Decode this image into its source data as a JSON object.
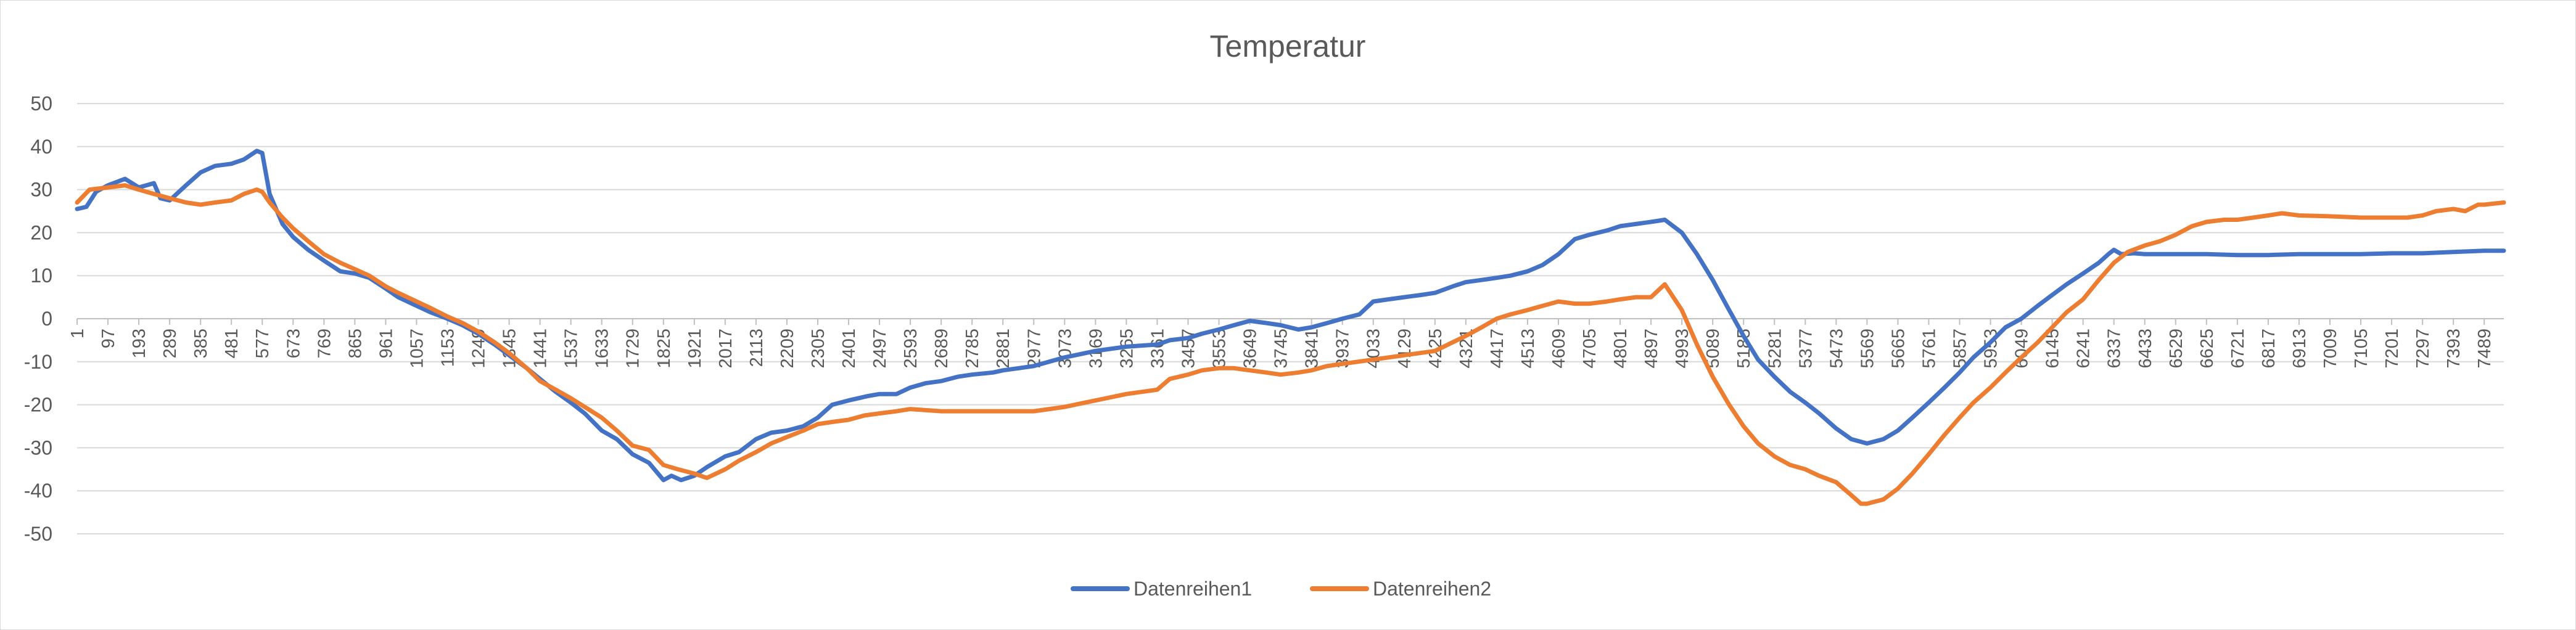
{
  "chart_data": {
    "type": "line",
    "title": "Temperatur",
    "xlabel": "",
    "ylabel": "",
    "ylim": [
      -50,
      50
    ],
    "yticks": [
      50,
      40,
      30,
      20,
      10,
      0,
      -10,
      -20,
      -30,
      -40,
      -50
    ],
    "xlim": [
      1,
      7550
    ],
    "xticks": [
      1,
      97,
      193,
      289,
      385,
      481,
      577,
      673,
      769,
      865,
      961,
      1057,
      1153,
      1249,
      1345,
      1441,
      1537,
      1633,
      1729,
      1825,
      1921,
      2017,
      2113,
      2209,
      2305,
      2401,
      2497,
      2593,
      2689,
      2785,
      2881,
      2977,
      3073,
      3169,
      3265,
      3361,
      3457,
      3553,
      3649,
      3745,
      3841,
      3937,
      4033,
      4129,
      4225,
      4321,
      4417,
      4513,
      4609,
      4705,
      4801,
      4897,
      4993,
      5089,
      5185,
      5281,
      5377,
      5473,
      5569,
      5665,
      5761,
      5857,
      5953,
      6049,
      6145,
      6241,
      6337,
      6433,
      6529,
      6625,
      6721,
      6817,
      6913,
      7009,
      7105,
      7201,
      7297,
      7393,
      7489
    ],
    "grid": true,
    "legend": "bottom",
    "series": [
      {
        "name": "Datenreihen1",
        "color": "#4472c4",
        "points": [
          [
            1,
            25.5
          ],
          [
            30,
            26
          ],
          [
            60,
            29.5
          ],
          [
            97,
            31
          ],
          [
            150,
            32.5
          ],
          [
            193,
            30.5
          ],
          [
            240,
            31.5
          ],
          [
            260,
            28
          ],
          [
            289,
            27.5
          ],
          [
            340,
            31
          ],
          [
            385,
            34
          ],
          [
            430,
            35.5
          ],
          [
            481,
            36
          ],
          [
            520,
            37
          ],
          [
            560,
            39
          ],
          [
            577,
            38.5
          ],
          [
            600,
            29
          ],
          [
            640,
            22
          ],
          [
            673,
            19
          ],
          [
            720,
            16
          ],
          [
            769,
            13.5
          ],
          [
            820,
            11
          ],
          [
            865,
            10.5
          ],
          [
            910,
            9.5
          ],
          [
            961,
            7
          ],
          [
            1000,
            5
          ],
          [
            1057,
            3
          ],
          [
            1100,
            1.5
          ],
          [
            1153,
            0
          ],
          [
            1200,
            -1.5
          ],
          [
            1249,
            -3.5
          ],
          [
            1300,
            -6
          ],
          [
            1345,
            -8.5
          ],
          [
            1400,
            -11.5
          ],
          [
            1441,
            -14
          ],
          [
            1490,
            -17
          ],
          [
            1537,
            -19.5
          ],
          [
            1580,
            -22
          ],
          [
            1633,
            -26
          ],
          [
            1680,
            -28
          ],
          [
            1729,
            -31.5
          ],
          [
            1780,
            -33.5
          ],
          [
            1825,
            -37.5
          ],
          [
            1850,
            -36.5
          ],
          [
            1880,
            -37.5
          ],
          [
            1921,
            -36.5
          ],
          [
            1960,
            -34.5
          ],
          [
            2017,
            -32
          ],
          [
            2060,
            -31
          ],
          [
            2113,
            -28
          ],
          [
            2160,
            -26.5
          ],
          [
            2209,
            -26
          ],
          [
            2260,
            -25
          ],
          [
            2305,
            -23
          ],
          [
            2350,
            -20
          ],
          [
            2401,
            -19
          ],
          [
            2460,
            -18
          ],
          [
            2497,
            -17.5
          ],
          [
            2550,
            -17.5
          ],
          [
            2593,
            -16
          ],
          [
            2640,
            -15
          ],
          [
            2689,
            -14.5
          ],
          [
            2740,
            -13.5
          ],
          [
            2785,
            -13
          ],
          [
            2850,
            -12.5
          ],
          [
            2881,
            -12
          ],
          [
            2930,
            -11.5
          ],
          [
            2977,
            -11
          ],
          [
            3073,
            -9
          ],
          [
            3169,
            -7.5
          ],
          [
            3265,
            -6.5
          ],
          [
            3361,
            -6
          ],
          [
            3400,
            -5
          ],
          [
            3457,
            -4.5
          ],
          [
            3500,
            -3.5
          ],
          [
            3553,
            -2.5
          ],
          [
            3600,
            -1.5
          ],
          [
            3649,
            -0.5
          ],
          [
            3700,
            -1
          ],
          [
            3745,
            -1.5
          ],
          [
            3800,
            -2.5
          ],
          [
            3841,
            -2
          ],
          [
            3890,
            -1
          ],
          [
            3937,
            0
          ],
          [
            3990,
            1
          ],
          [
            4033,
            4
          ],
          [
            4080,
            4.5
          ],
          [
            4129,
            5
          ],
          [
            4180,
            5.5
          ],
          [
            4225,
            6
          ],
          [
            4280,
            7.5
          ],
          [
            4321,
            8.5
          ],
          [
            4370,
            9
          ],
          [
            4417,
            9.5
          ],
          [
            4460,
            10
          ],
          [
            4513,
            11
          ],
          [
            4560,
            12.5
          ],
          [
            4609,
            15
          ],
          [
            4660,
            18.5
          ],
          [
            4705,
            19.5
          ],
          [
            4760,
            20.5
          ],
          [
            4801,
            21.5
          ],
          [
            4850,
            22
          ],
          [
            4897,
            22.5
          ],
          [
            4940,
            23
          ],
          [
            4993,
            20
          ],
          [
            5040,
            15
          ],
          [
            5089,
            9
          ],
          [
            5140,
            2
          ],
          [
            5185,
            -4
          ],
          [
            5230,
            -9.5
          ],
          [
            5281,
            -13.5
          ],
          [
            5330,
            -17
          ],
          [
            5377,
            -19.5
          ],
          [
            5420,
            -22
          ],
          [
            5473,
            -25.5
          ],
          [
            5520,
            -28
          ],
          [
            5569,
            -29
          ],
          [
            5620,
            -28
          ],
          [
            5665,
            -26
          ],
          [
            5710,
            -23
          ],
          [
            5761,
            -19.5
          ],
          [
            5810,
            -16
          ],
          [
            5857,
            -12.5
          ],
          [
            5900,
            -9
          ],
          [
            5953,
            -5.5
          ],
          [
            6000,
            -2
          ],
          [
            6049,
            0
          ],
          [
            6100,
            3
          ],
          [
            6145,
            5.5
          ],
          [
            6190,
            8
          ],
          [
            6241,
            10.5
          ],
          [
            6290,
            13
          ],
          [
            6320,
            15
          ],
          [
            6337,
            16
          ],
          [
            6360,
            15
          ],
          [
            6400,
            15.2
          ],
          [
            6433,
            15
          ],
          [
            6529,
            15
          ],
          [
            6625,
            15
          ],
          [
            6721,
            14.8
          ],
          [
            6817,
            14.8
          ],
          [
            6913,
            15
          ],
          [
            7009,
            15
          ],
          [
            7105,
            15
          ],
          [
            7201,
            15.2
          ],
          [
            7297,
            15.2
          ],
          [
            7393,
            15.5
          ],
          [
            7489,
            15.8
          ],
          [
            7550,
            15.8
          ]
        ]
      },
      {
        "name": "Datenreihen2",
        "color": "#ed7d31",
        "points": [
          [
            1,
            27
          ],
          [
            40,
            30
          ],
          [
            97,
            30.5
          ],
          [
            150,
            31
          ],
          [
            193,
            30
          ],
          [
            240,
            29
          ],
          [
            289,
            28
          ],
          [
            340,
            27
          ],
          [
            385,
            26.5
          ],
          [
            430,
            27
          ],
          [
            481,
            27.5
          ],
          [
            520,
            29
          ],
          [
            560,
            30
          ],
          [
            577,
            29.5
          ],
          [
            600,
            27
          ],
          [
            640,
            23.5
          ],
          [
            673,
            21
          ],
          [
            720,
            18
          ],
          [
            769,
            15
          ],
          [
            820,
            13
          ],
          [
            865,
            11.5
          ],
          [
            910,
            10
          ],
          [
            961,
            7.5
          ],
          [
            1000,
            6
          ],
          [
            1057,
            4
          ],
          [
            1100,
            2.5
          ],
          [
            1153,
            0.5
          ],
          [
            1200,
            -1
          ],
          [
            1249,
            -3
          ],
          [
            1300,
            -5.5
          ],
          [
            1345,
            -8
          ],
          [
            1400,
            -11.5
          ],
          [
            1441,
            -14.5
          ],
          [
            1490,
            -16.5
          ],
          [
            1537,
            -18.5
          ],
          [
            1580,
            -20.5
          ],
          [
            1633,
            -23
          ],
          [
            1680,
            -26
          ],
          [
            1729,
            -29.5
          ],
          [
            1780,
            -30.5
          ],
          [
            1825,
            -34
          ],
          [
            1870,
            -35
          ],
          [
            1921,
            -36
          ],
          [
            1960,
            -37
          ],
          [
            2017,
            -35
          ],
          [
            2060,
            -33
          ],
          [
            2113,
            -31
          ],
          [
            2160,
            -29
          ],
          [
            2209,
            -27.5
          ],
          [
            2260,
            -26
          ],
          [
            2305,
            -24.5
          ],
          [
            2350,
            -24
          ],
          [
            2401,
            -23.5
          ],
          [
            2450,
            -22.5
          ],
          [
            2497,
            -22
          ],
          [
            2550,
            -21.5
          ],
          [
            2593,
            -21
          ],
          [
            2689,
            -21.5
          ],
          [
            2785,
            -21.5
          ],
          [
            2881,
            -21.5
          ],
          [
            2977,
            -21.5
          ],
          [
            3073,
            -20.5
          ],
          [
            3169,
            -19
          ],
          [
            3265,
            -17.5
          ],
          [
            3361,
            -16.5
          ],
          [
            3400,
            -14
          ],
          [
            3457,
            -13
          ],
          [
            3500,
            -12
          ],
          [
            3553,
            -11.5
          ],
          [
            3600,
            -11.5
          ],
          [
            3649,
            -12
          ],
          [
            3700,
            -12.5
          ],
          [
            3745,
            -13
          ],
          [
            3800,
            -12.5
          ],
          [
            3841,
            -12
          ],
          [
            3890,
            -11
          ],
          [
            3937,
            -10.5
          ],
          [
            4033,
            -9.5
          ],
          [
            4129,
            -8.5
          ],
          [
            4225,
            -7.5
          ],
          [
            4321,
            -4
          ],
          [
            4370,
            -2
          ],
          [
            4417,
            0
          ],
          [
            4460,
            1
          ],
          [
            4513,
            2
          ],
          [
            4560,
            3
          ],
          [
            4609,
            4
          ],
          [
            4660,
            3.5
          ],
          [
            4705,
            3.5
          ],
          [
            4760,
            4
          ],
          [
            4801,
            4.5
          ],
          [
            4850,
            5
          ],
          [
            4897,
            5
          ],
          [
            4940,
            8
          ],
          [
            4993,
            2
          ],
          [
            5040,
            -6
          ],
          [
            5089,
            -13.5
          ],
          [
            5140,
            -20
          ],
          [
            5185,
            -25
          ],
          [
            5230,
            -29
          ],
          [
            5281,
            -32
          ],
          [
            5330,
            -34
          ],
          [
            5377,
            -35
          ],
          [
            5420,
            -36.5
          ],
          [
            5473,
            -38
          ],
          [
            5520,
            -41
          ],
          [
            5550,
            -43
          ],
          [
            5569,
            -43
          ],
          [
            5620,
            -42
          ],
          [
            5665,
            -39.5
          ],
          [
            5710,
            -36
          ],
          [
            5761,
            -31.5
          ],
          [
            5810,
            -27
          ],
          [
            5857,
            -23
          ],
          [
            5900,
            -19.5
          ],
          [
            5953,
            -16
          ],
          [
            6000,
            -12.5
          ],
          [
            6049,
            -9
          ],
          [
            6100,
            -5.5
          ],
          [
            6145,
            -2
          ],
          [
            6190,
            1.5
          ],
          [
            6241,
            4.5
          ],
          [
            6290,
            9
          ],
          [
            6337,
            13
          ],
          [
            6380,
            15.5
          ],
          [
            6433,
            17
          ],
          [
            6480,
            18
          ],
          [
            6529,
            19.5
          ],
          [
            6580,
            21.5
          ],
          [
            6625,
            22.5
          ],
          [
            6680,
            23
          ],
          [
            6721,
            23
          ],
          [
            6770,
            23.5
          ],
          [
            6817,
            24
          ],
          [
            6860,
            24.5
          ],
          [
            6913,
            24
          ],
          [
            7009,
            23.8
          ],
          [
            7105,
            23.5
          ],
          [
            7201,
            23.5
          ],
          [
            7250,
            23.5
          ],
          [
            7297,
            24
          ],
          [
            7340,
            25
          ],
          [
            7393,
            25.5
          ],
          [
            7430,
            25
          ],
          [
            7470,
            26.5
          ],
          [
            7489,
            26.5
          ],
          [
            7550,
            27
          ]
        ]
      }
    ]
  }
}
